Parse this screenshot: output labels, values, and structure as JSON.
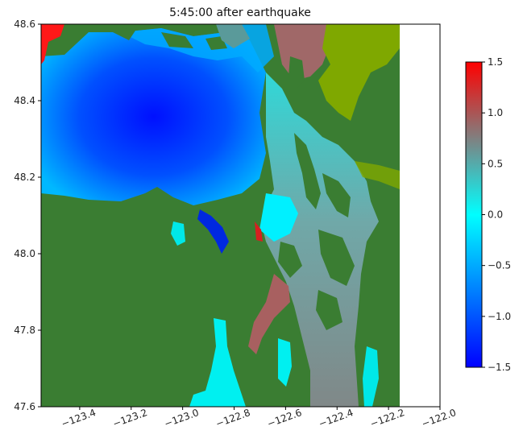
{
  "chart_data": {
    "type": "heatmap",
    "title": "5:45:00 after earthquake",
    "xlabel": "",
    "ylabel": "",
    "xlim": [
      -123.55,
      -122.0
    ],
    "ylim": [
      47.6,
      48.6
    ],
    "x_ticks": [
      -123.4,
      -123.2,
      -123.0,
      -122.8,
      -122.6,
      -122.4,
      -122.2,
      -122.0
    ],
    "x_tick_labels": [
      "−123.4",
      "−123.2",
      "−123.0",
      "−122.8",
      "−122.6",
      "−122.4",
      "−122.2",
      "−122.0"
    ],
    "y_ticks": [
      47.6,
      47.8,
      48.0,
      48.2,
      48.4,
      48.6
    ],
    "y_tick_labels": [
      "47.6",
      "47.8",
      "48.0",
      "48.2",
      "48.4",
      "48.6"
    ],
    "data_extent_x": [
      -123.55,
      -122.15
    ],
    "colorbar": {
      "range": [
        -1.5,
        1.5
      ],
      "ticks": [
        -1.5,
        -1.0,
        -0.5,
        0.0,
        0.5,
        1.0,
        1.5
      ],
      "tick_labels": [
        "−1.5",
        "−1.0",
        "−0.5",
        "0.0",
        "0.5",
        "1.0",
        "1.5"
      ],
      "colors": [
        "#0000ff",
        "#00ffff",
        "#808080",
        "#ff0000"
      ]
    },
    "colors": {
      "land": "#3a7d32",
      "shore": "#7fa800"
    }
  }
}
